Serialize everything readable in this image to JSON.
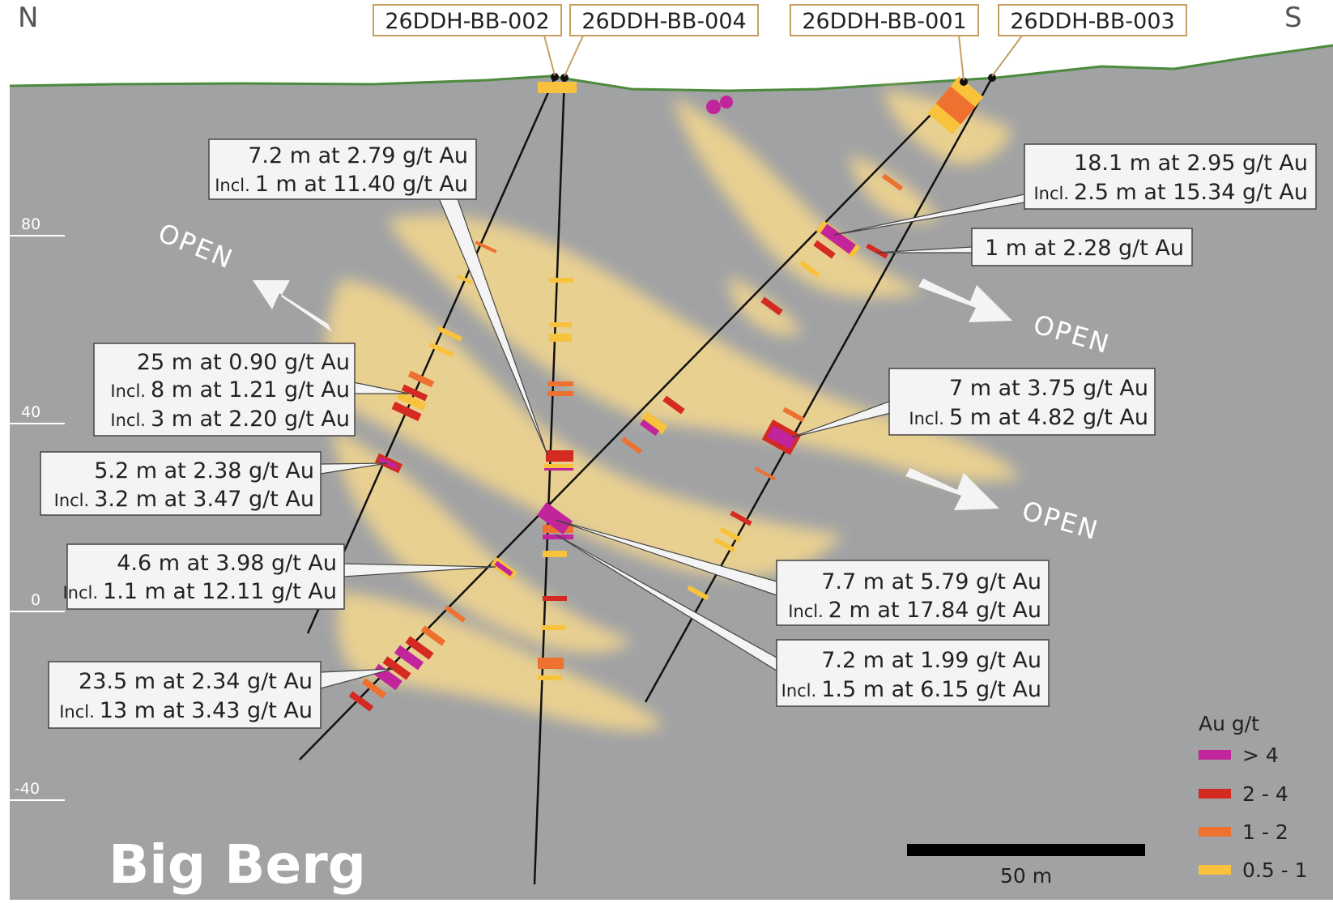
{
  "compass": {
    "north": "N",
    "south": "S"
  },
  "title": "Big Berg",
  "drillholes": [
    {
      "id": "26DDH-BB-002"
    },
    {
      "id": "26DDH-BB-004"
    },
    {
      "id": "26DDH-BB-001"
    },
    {
      "id": "26DDH-BB-003"
    }
  ],
  "elevation_labels": [
    "80",
    "40",
    "0",
    "-40"
  ],
  "open_label": "OPEN",
  "intercepts": [
    {
      "main": "7.2 m at 2.79 g/t Au",
      "incl_prefix": "Incl.",
      "incl_text": "1 m at 11.40 g/t Au"
    },
    {
      "main": "18.1 m at  2.95 g/t Au",
      "incl_prefix": "Incl.",
      "incl_text": "2.5 m at 15.34 g/t Au"
    },
    {
      "main": "1 m at 2.28 g/t Au"
    },
    {
      "main": "25 m at 0.90 g/t Au",
      "incl_prefix": "Incl.",
      "incl_text": "8 m at 1.21 g/t Au",
      "incl2_prefix": "Incl.",
      "incl2_text": "3 m at 2.20 g/t Au"
    },
    {
      "main": "7 m at 3.75 g/t Au",
      "incl_prefix": "Incl.",
      "incl_text": "5 m at 4.82 g/t Au"
    },
    {
      "main": "5.2 m at 2.38 g/t Au",
      "incl_prefix": "Incl.",
      "incl_text": "3.2 m at 3.47 g/t Au"
    },
    {
      "main": "4.6 m at 3.98 g/t Au",
      "incl_prefix": "Incl.",
      "incl_text": "1.1 m at 12.11 g/t Au"
    },
    {
      "main": "7.7 m at 5.79 g/t Au",
      "incl_prefix": "Incl.",
      "incl_text": "2 m at 17.84 g/t Au"
    },
    {
      "main": "23.5 m at 2.34 g/t  Au",
      "incl_prefix": "Incl.",
      "incl_text": "13 m at 3.43 g/t Au"
    },
    {
      "main": "7.2 m at 1.99 g/t Au",
      "incl_prefix": "Incl.",
      "incl_text": "1.5 m at 6.15 g/t Au"
    }
  ],
  "legend": {
    "title": "Au g/t",
    "items": [
      {
        "label": "> 4",
        "color": "#c1249b"
      },
      {
        "label": "2 - 4",
        "color": "#d42a21"
      },
      {
        "label": "1 - 2",
        "color": "#ee7130"
      },
      {
        "label": "0.5 - 1",
        "color": "#f9c23c"
      }
    ]
  },
  "scale_bar": {
    "label": "50 m"
  },
  "colors": {
    "background": "#a1a2a4",
    "topography": "#4c8a3c",
    "mineralized_zone": "#efd48f",
    "label_box_border": "#c6a062",
    "callout_fill": "#f4f4f4"
  }
}
